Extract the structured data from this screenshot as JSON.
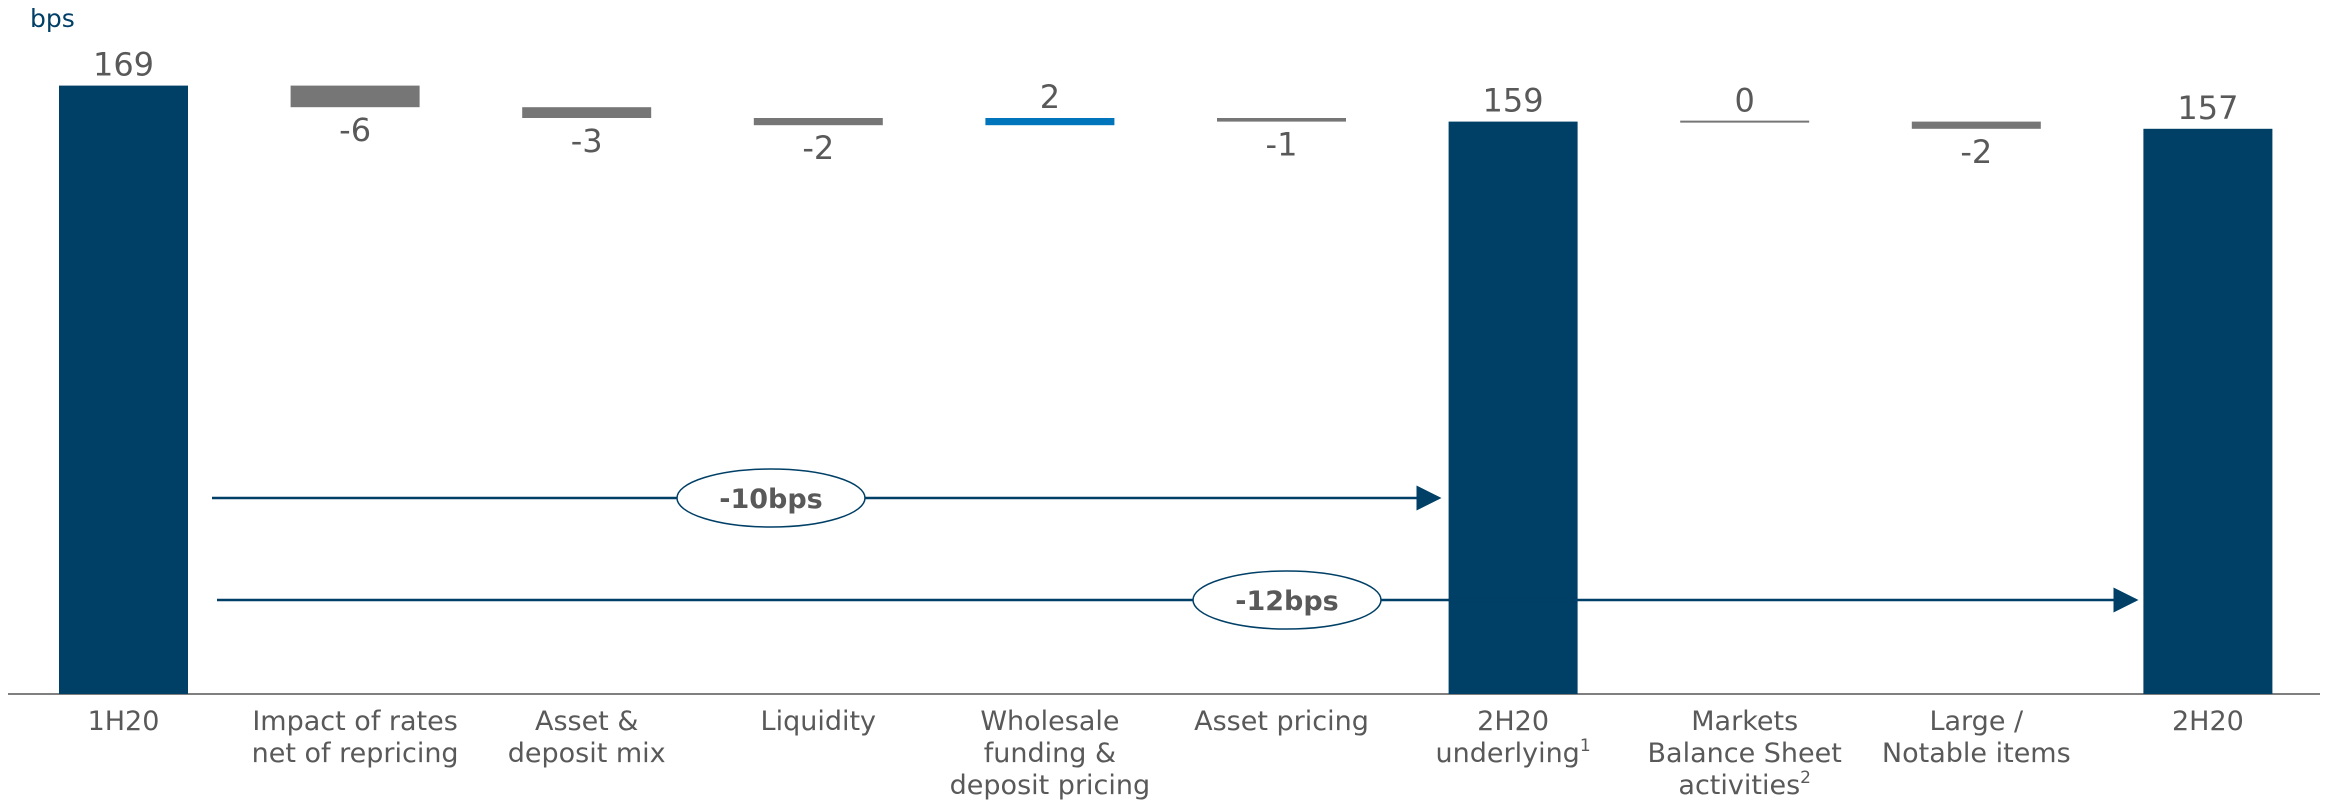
{
  "chart_data": {
    "type": "waterfall",
    "unit_label": "bps",
    "colors": {
      "total": "#003f66",
      "negative": "#767676",
      "positive": "#0075bb",
      "zero": "#767676",
      "axis": "#7f7f7f",
      "arrow": "#003f66",
      "text": "#595959"
    },
    "bars": [
      {
        "label": "1H20",
        "sup": "",
        "kind": "total",
        "value": 169,
        "display": "169"
      },
      {
        "label": "Impact of rates net of repricing",
        "sup": "",
        "kind": "delta",
        "value": -6,
        "display": "-6"
      },
      {
        "label": "Asset & deposit mix",
        "sup": "",
        "kind": "delta",
        "value": -3,
        "display": "-3"
      },
      {
        "label": "Liquidity",
        "sup": "",
        "kind": "delta",
        "value": -2,
        "display": "-2"
      },
      {
        "label": "Wholesale funding & deposit pricing",
        "sup": "",
        "kind": "delta",
        "value": 2,
        "display": "2"
      },
      {
        "label": "Asset pricing",
        "sup": "",
        "kind": "delta",
        "value": -1,
        "display": "-1"
      },
      {
        "label": "2H20 underlying",
        "sup": "1",
        "kind": "total",
        "value": 159,
        "display": "159"
      },
      {
        "label": "Markets Balance Sheet activities",
        "sup": "2",
        "kind": "delta",
        "value": 0,
        "display": "0"
      },
      {
        "label": "Large / Notable items",
        "sup": "",
        "kind": "delta",
        "value": -2,
        "display": "-2"
      },
      {
        "label": "2H20",
        "sup": "",
        "kind": "total",
        "value": 157,
        "display": "157"
      }
    ],
    "category_lines": [
      [
        "1H20"
      ],
      [
        "Impact of rates",
        "net of repricing"
      ],
      [
        "Asset &",
        "deposit mix"
      ],
      [
        "Liquidity"
      ],
      [
        "Wholesale",
        "funding &",
        "deposit pricing"
      ],
      [
        "Asset pricing"
      ],
      [
        "2H20",
        "underlying"
      ],
      [
        "Markets",
        "Balance Sheet",
        "activities"
      ],
      [
        "Large /",
        "Notable items"
      ],
      [
        "2H20"
      ]
    ],
    "annotations": [
      {
        "text": "-10bps",
        "from": 0,
        "to": 6
      },
      {
        "text": "-12bps",
        "from": 0,
        "to": 9
      }
    ]
  }
}
